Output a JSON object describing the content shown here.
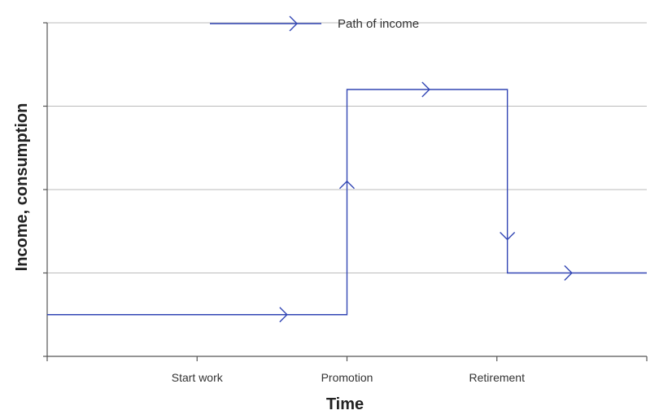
{
  "chart_data": {
    "type": "line",
    "title": "",
    "xlabel": "Time",
    "ylabel": "Income, consumption",
    "x_ticks": [
      {
        "x": 0,
        "label": ""
      },
      {
        "x": 1,
        "label": "Start work"
      },
      {
        "x": 2,
        "label": "Promotion"
      },
      {
        "x": 3,
        "label": "Retirement"
      },
      {
        "x": 4,
        "label": ""
      }
    ],
    "y_ticks": [
      0,
      1,
      2,
      3,
      4
    ],
    "xlim": [
      0,
      4
    ],
    "ylim": [
      0,
      4
    ],
    "grid": "horizontal",
    "legend": {
      "placement": "top-center",
      "entries": [
        {
          "label": "Path of income"
        }
      ]
    },
    "series": [
      {
        "name": "Path of income",
        "color": "#3246b4",
        "points": [
          [
            0,
            0.5
          ],
          [
            2,
            0.5
          ],
          [
            2,
            3.2
          ],
          [
            3.07,
            3.2
          ],
          [
            3.07,
            1.0
          ],
          [
            4,
            1.0
          ]
        ],
        "arrows": [
          {
            "x": 1.6,
            "y": 0.5,
            "dir": "right"
          },
          {
            "x": 2,
            "y": 2.1,
            "dir": "up"
          },
          {
            "x": 2.55,
            "y": 3.2,
            "dir": "right"
          },
          {
            "x": 3.07,
            "y": 1.4,
            "dir": "down"
          },
          {
            "x": 3.5,
            "y": 1.0,
            "dir": "right"
          }
        ]
      }
    ],
    "colors": {
      "line": "#3246b4",
      "axis": "#555555",
      "grid": "#bbbbbb"
    }
  }
}
